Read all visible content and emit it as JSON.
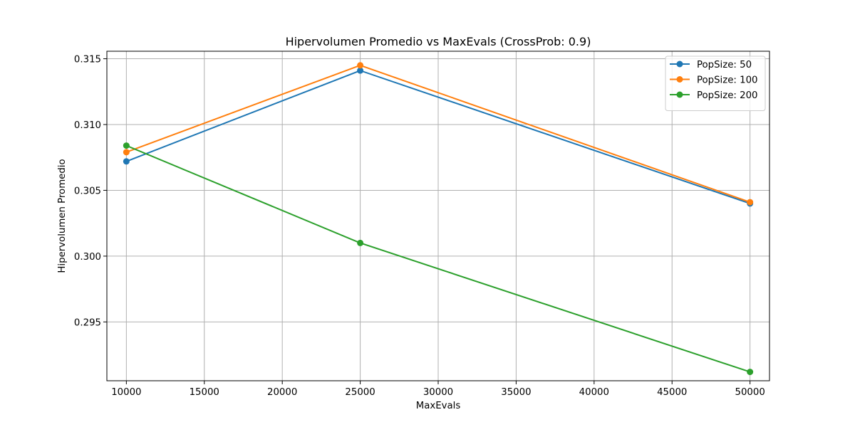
{
  "chart_data": {
    "type": "line",
    "title": "Hipervolumen Promedio vs MaxEvals (CrossProb: 0.9)",
    "xlabel": "MaxEvals",
    "ylabel": "Hipervolumen Promedio",
    "x": [
      10000,
      25000,
      50000
    ],
    "xlim": [
      8750,
      51250
    ],
    "ylim": [
      0.29053,
      0.31557
    ],
    "xticks": [
      10000,
      15000,
      20000,
      25000,
      30000,
      35000,
      40000,
      45000,
      50000
    ],
    "yticks": [
      0.295,
      0.3,
      0.305,
      0.31,
      0.315
    ],
    "xtick_labels": [
      "10000",
      "15000",
      "20000",
      "25000",
      "30000",
      "35000",
      "40000",
      "45000",
      "50000"
    ],
    "ytick_labels": [
      "0.295",
      "0.300",
      "0.305",
      "0.310",
      "0.315"
    ],
    "grid": true,
    "legend_position": "top-right",
    "series": [
      {
        "name": "PopSize: 50",
        "color": "#1f77b4",
        "values": [
          0.3072,
          0.3141,
          0.304
        ]
      },
      {
        "name": "PopSize: 100",
        "color": "#ff7f0e",
        "values": [
          0.3079,
          0.3145,
          0.3041
        ]
      },
      {
        "name": "PopSize: 200",
        "color": "#2ca02c",
        "values": [
          0.3084,
          0.301,
          0.2912
        ]
      }
    ]
  }
}
